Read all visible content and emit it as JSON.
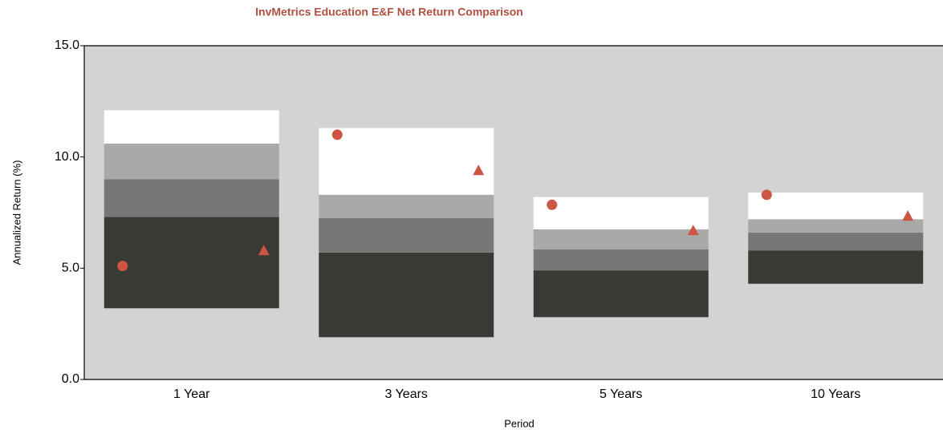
{
  "chart_data": {
    "type": "floating_range",
    "title": "InvMetrics Education E&F Net Return Comparison",
    "x_label": "Period",
    "y_label": "Annualized Return (%)",
    "categories": [
      "1 Year",
      "3 Years",
      "5 Years",
      "10 Years"
    ],
    "ranges": [
      [
        3.2,
        7.3,
        9.0,
        10.6,
        12.1
      ],
      [
        1.9,
        5.7,
        7.25,
        8.3,
        11.3
      ],
      [
        2.8,
        4.9,
        5.85,
        6.75,
        8.2
      ],
      [
        4.3,
        5.8,
        6.6,
        7.2,
        8.4
      ]
    ],
    "range_colors": [
      "#3a3a34",
      "#777776",
      "#a9a9a8",
      "#ffffff"
    ],
    "series": [
      {
        "marker": "circle",
        "color": "#cc5544",
        "values": [
          5.1,
          11.0,
          7.85,
          8.3
        ]
      },
      {
        "marker": "triangle",
        "color": "#cc5544",
        "values": [
          5.8,
          9.4,
          6.7,
          7.35
        ]
      }
    ],
    "ylim": [
      0,
      15
    ],
    "yticks": [
      {
        "value": 0,
        "label": "0.0"
      },
      {
        "value": 5,
        "label": "5.0"
      },
      {
        "value": 10,
        "label": "10.0"
      },
      {
        "value": 15,
        "label": "15.0"
      }
    ],
    "background": "#d3d3d3"
  }
}
